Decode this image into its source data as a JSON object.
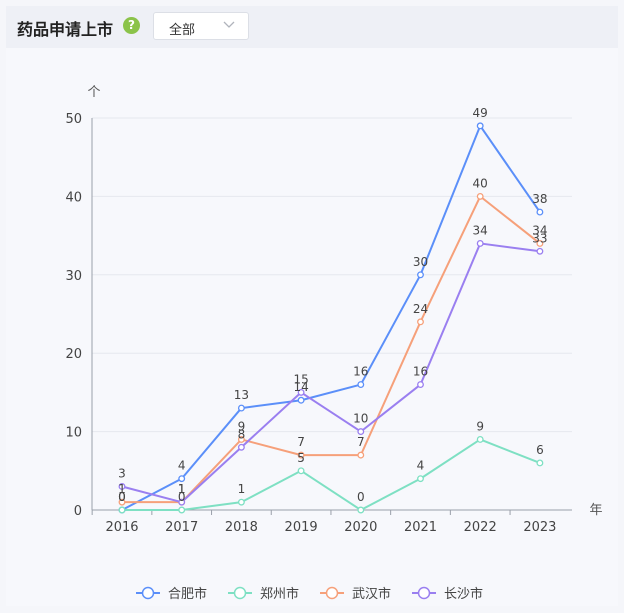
{
  "header": {
    "title": "药品申请上市",
    "help_icon": "question-circle-icon",
    "help_symbol": "?"
  },
  "filter": {
    "selected": "全部",
    "icon": "chevron-down-icon"
  },
  "colors": {
    "合肥市": "#5b8ff9",
    "郑州市": "#7ee0c3",
    "武汉市": "#f6a07a",
    "长沙市": "#9a7ff0"
  },
  "chart_data": {
    "type": "line",
    "categories": [
      "2016",
      "2017",
      "2018",
      "2019",
      "2020",
      "2021",
      "2022",
      "2023"
    ],
    "series": [
      {
        "name": "合肥市",
        "values": [
          0,
          4,
          13,
          14,
          16,
          30,
          49,
          38
        ]
      },
      {
        "name": "郑州市",
        "values": [
          0,
          0,
          1,
          5,
          0,
          4,
          9,
          6
        ]
      },
      {
        "name": "武汉市",
        "values": [
          1,
          1,
          9,
          7,
          7,
          24,
          40,
          34
        ]
      },
      {
        "name": "长沙市",
        "values": [
          3,
          1,
          8,
          15,
          10,
          16,
          34,
          33
        ]
      }
    ],
    "xlabel": "年",
    "ylabel": "个",
    "ylim": [
      0,
      50
    ],
    "yticks": [
      0,
      10,
      20,
      30,
      40,
      50
    ],
    "grid": true,
    "legend": "bottom-center"
  }
}
